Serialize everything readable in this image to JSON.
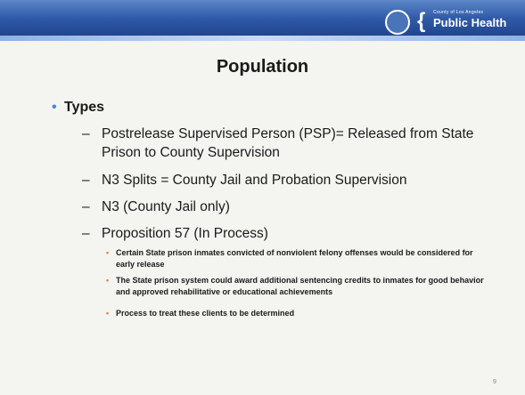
{
  "header": {
    "org_small": "County of Los Angeles",
    "org": "Public Health"
  },
  "title": "Population",
  "bullets": [
    {
      "text": "Types",
      "items": [
        {
          "text": "Postrelease Supervised Person (PSP)= Released from State Prison to County Supervision"
        },
        {
          "text": "N3 Splits = County Jail and Probation Supervision"
        },
        {
          "text": "N3 (County Jail only)"
        },
        {
          "text": "Proposition 57 (In Process)",
          "items": [
            "Certain State prison inmates convicted of nonviolent felony offenses would be considered for early release",
            "The State prison system could award additional sentencing credits to inmates for good behavior and approved rehabilitative or educational achievements",
            "Process to treat these clients to be determined"
          ]
        }
      ]
    }
  ],
  "page_number": "9"
}
